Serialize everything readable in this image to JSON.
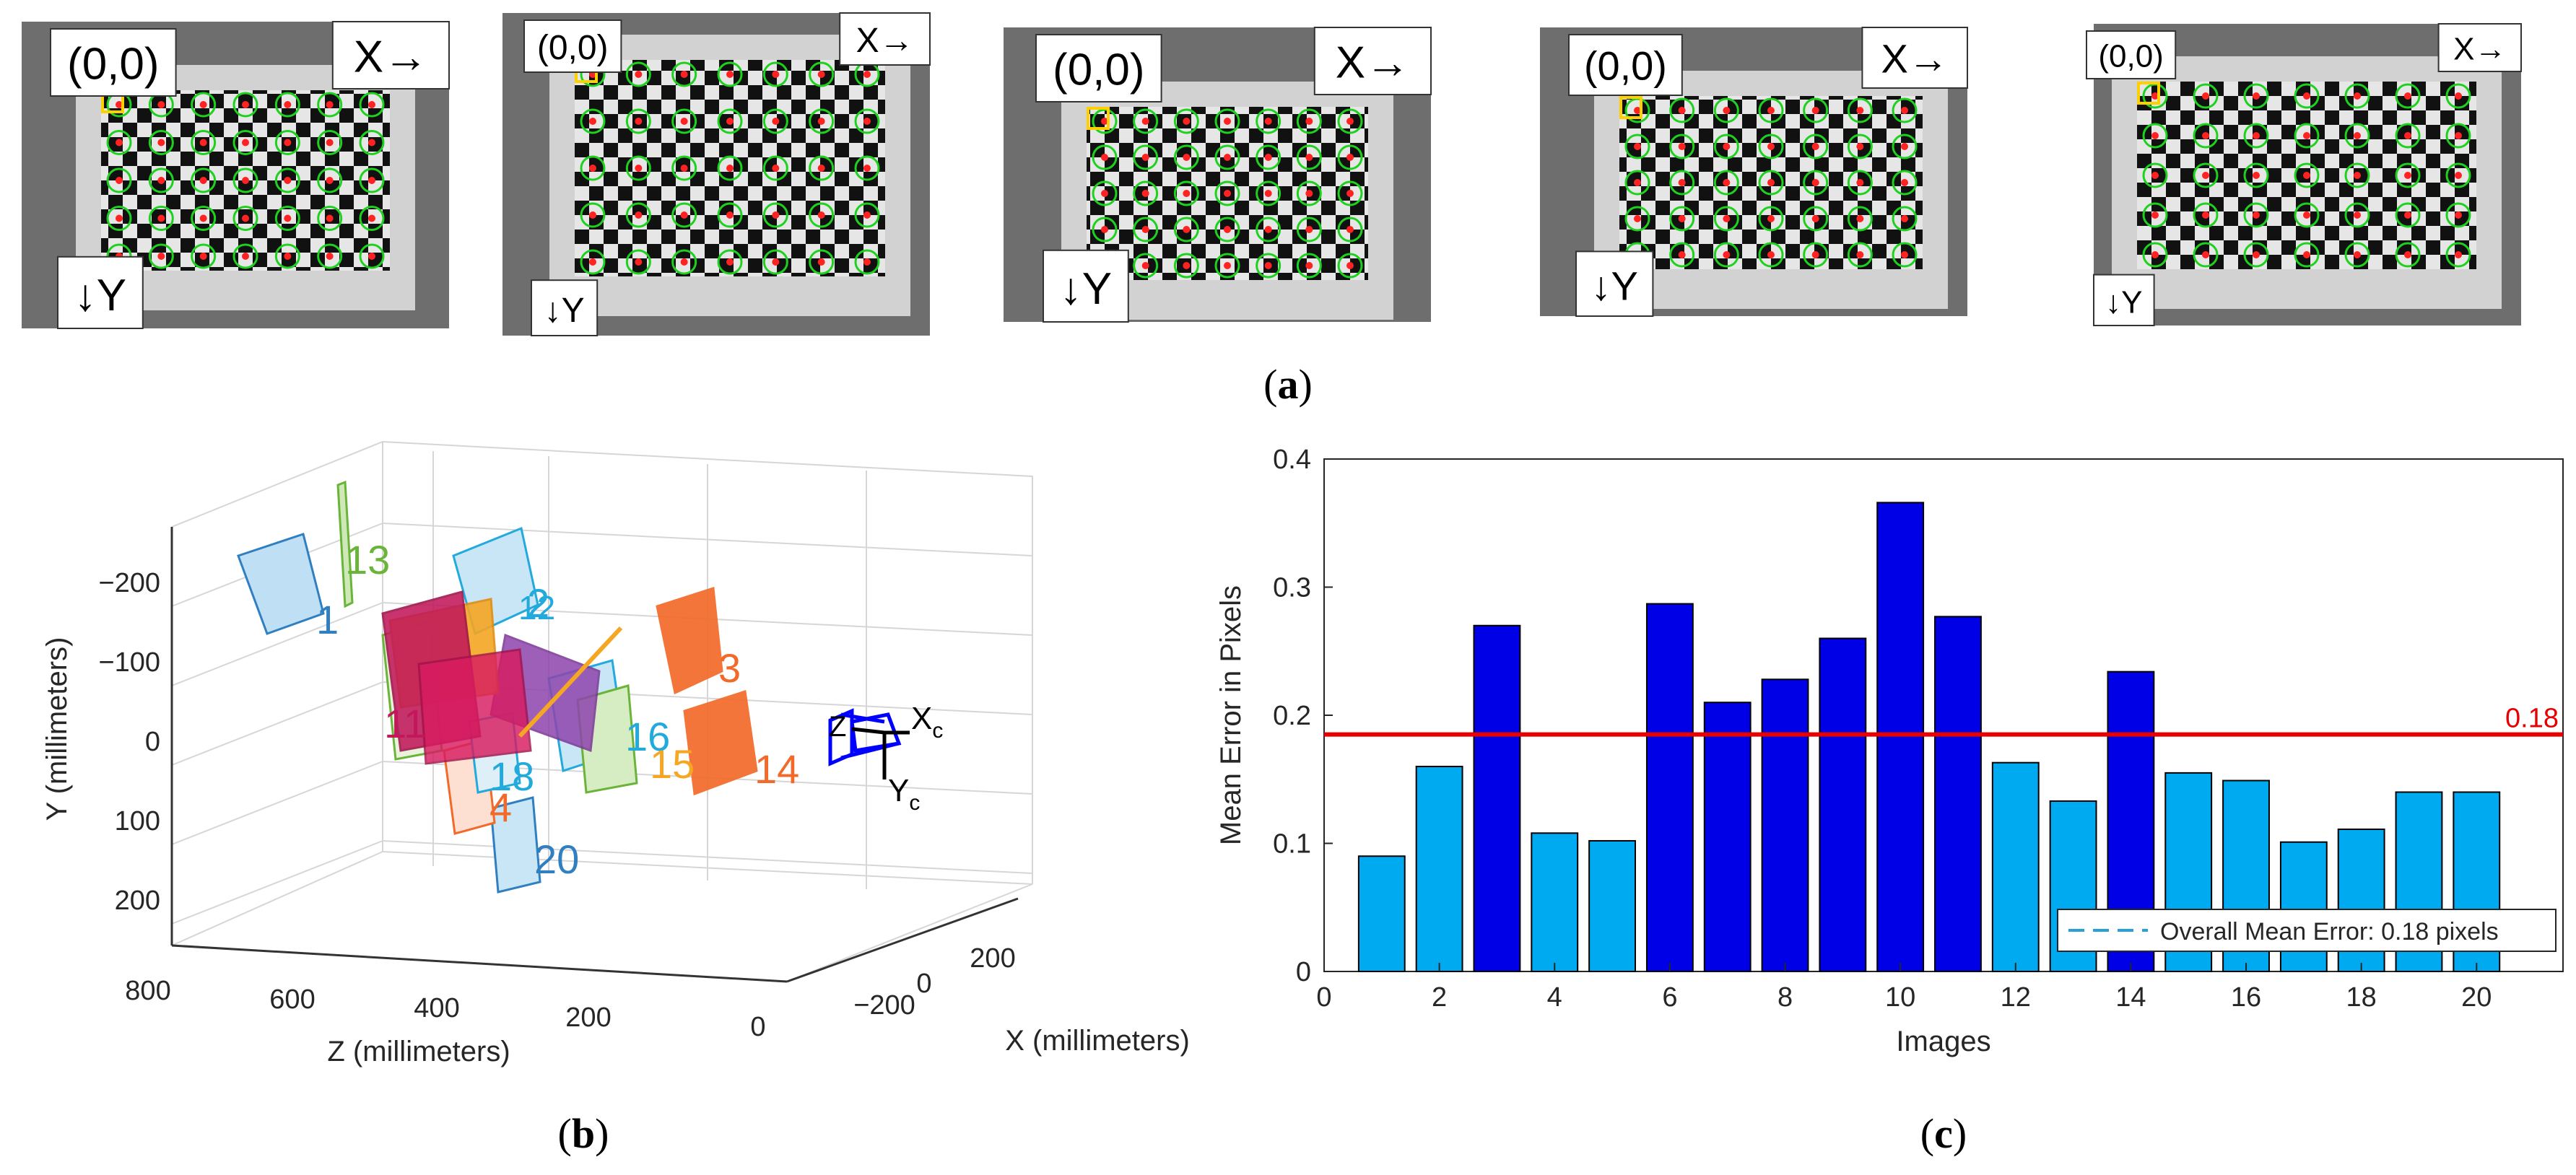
{
  "panel_a": {
    "caption_open": "(",
    "caption_letter": "a",
    "caption_close": ")",
    "origin_label": "(0,0)",
    "x_label": "X→",
    "y_label": "↓Y",
    "image_count": 5
  },
  "panel_b": {
    "caption_open": "(",
    "caption_letter": "b",
    "caption_close": ")",
    "ylabel": "Y (millimeters)",
    "zlabel": "Z (millimeters)",
    "xlabel": "X (millimeters)",
    "y_ticks": [
      "−200",
      "−100",
      "0",
      "100",
      "200"
    ],
    "z_ticks": [
      "800",
      "600",
      "400",
      "200",
      "0"
    ],
    "x_ticks": [
      "−200",
      "0",
      "200"
    ],
    "camera_x": "X",
    "camera_y": "Y",
    "camera_sub": "c",
    "camera_z": "Z",
    "board_labels": [
      "13",
      "1",
      "2",
      "12",
      "3",
      "16",
      "15",
      "14",
      "11",
      "18",
      "4",
      "20"
    ],
    "colors": {
      "blue": "#2f7fc1",
      "cyan": "#22aadd",
      "green": "#6ab43a",
      "orange": "#f26a2a",
      "magenta": "#c2185b",
      "purple": "#8e44ad",
      "yellow": "#f5a623",
      "camera": "#0000ff"
    }
  },
  "panel_c": {
    "caption_open": "(",
    "caption_letter": "c",
    "caption_close": ")"
  },
  "chart_data": {
    "type": "bar",
    "title": "",
    "xlabel": "Images",
    "ylabel": "Mean Error in Pixels",
    "categories": [
      "1",
      "2",
      "3",
      "4",
      "5",
      "6",
      "7",
      "8",
      "9",
      "10",
      "11",
      "12",
      "13",
      "14",
      "15",
      "16",
      "17",
      "18",
      "19",
      "20"
    ],
    "values": [
      0.09,
      0.16,
      0.27,
      0.108,
      0.102,
      0.287,
      0.21,
      0.228,
      0.26,
      0.366,
      0.277,
      0.163,
      0.133,
      0.234,
      0.155,
      0.149,
      0.101,
      0.111,
      0.14,
      0.14
    ],
    "xlim": [
      0,
      21.5
    ],
    "ylim": [
      0,
      0.4
    ],
    "x_ticks": [
      "0",
      "2",
      "4",
      "6",
      "8",
      "10",
      "12",
      "14",
      "16",
      "18",
      "20"
    ],
    "y_ticks": [
      "0",
      "0.1",
      "0.2",
      "0.3",
      "0.4"
    ],
    "overall_mean": 0.185,
    "overall_mean_label": "0.18",
    "legend": "Overall Mean Error: 0.18 pixels",
    "legend_position": "bottom-right",
    "colors": {
      "above_mean": "#0000e6",
      "below_mean": "#00aaf0",
      "mean_line": "#e60000",
      "legend_line": "#2aa0d8"
    }
  }
}
